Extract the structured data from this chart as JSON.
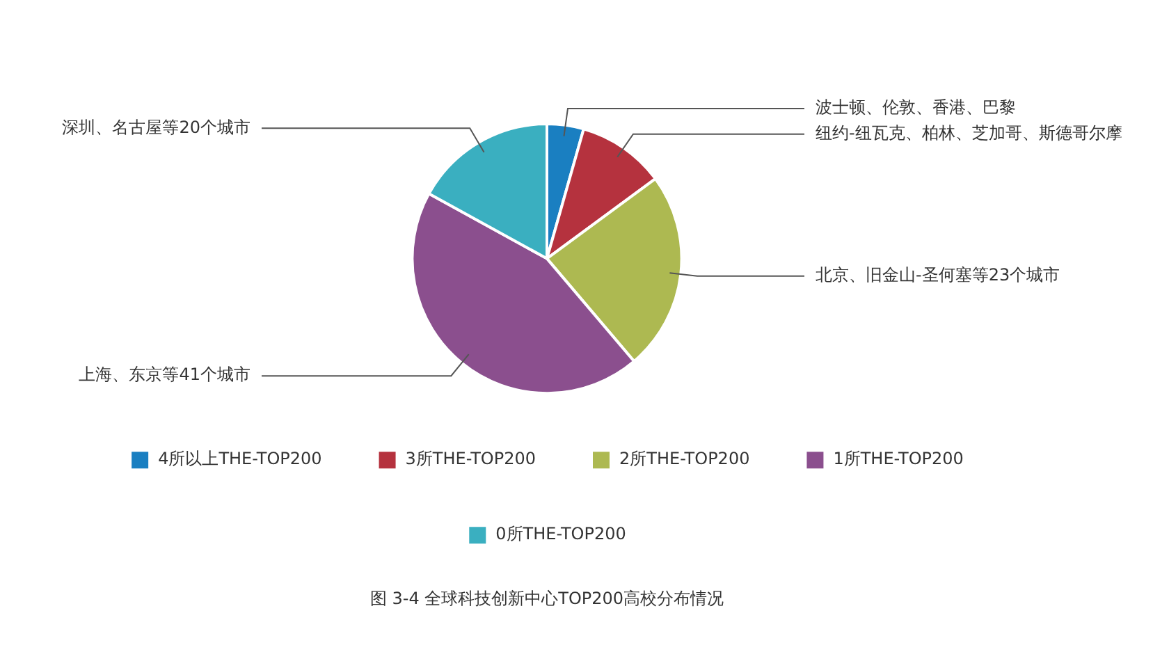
{
  "chart_data": {
    "type": "pie",
    "title": "图 3-4 全球科技创新中心TOP200高校分布情况",
    "categories": [
      "4所以上THE-TOP200",
      "3所THE-TOP200",
      "2所THE-TOP200",
      "1所THE-TOP200",
      "0所THE-TOP200"
    ],
    "values": [
      4.4,
      10.5,
      23.9,
      44.2,
      17
    ],
    "colors": [
      "#1a7fc1",
      "#b5323e",
      "#adb951",
      "#8b4f8e",
      "#3aafc0"
    ],
    "annotations": [
      "波士顿、伦敦、香港、巴黎",
      "纽约-纽瓦克、柏林、芝加哥、斯德哥尔摩",
      "北京、旧金山-圣何塞等23个城市",
      "上海、东京等41个城市",
      "深圳、名古屋等20个城市"
    ],
    "legend": "bottom"
  }
}
